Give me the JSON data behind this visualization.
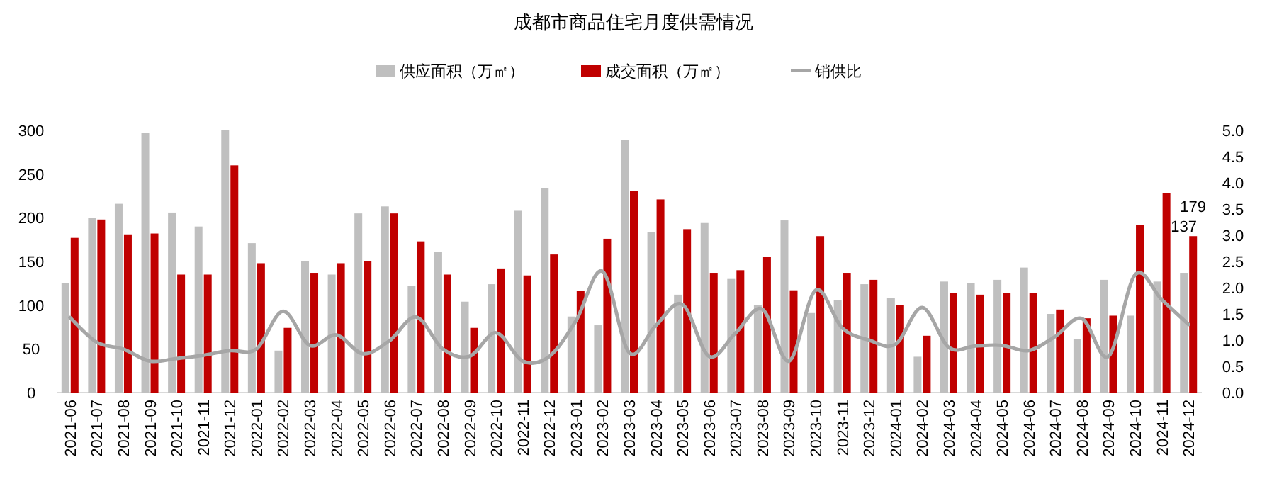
{
  "chart_data": {
    "type": "bar",
    "title": "成都市商品住宅月度供需情况",
    "legend": "top",
    "grid": false,
    "categories": [
      "2021-06",
      "2021-07",
      "2021-08",
      "2021-09",
      "2021-10",
      "2021-11",
      "2021-12",
      "2022-01",
      "2022-02",
      "2022-03",
      "2022-04",
      "2022-05",
      "2022-06",
      "2022-07",
      "2022-08",
      "2022-09",
      "2022-10",
      "2022-11",
      "2022-12",
      "2023-01",
      "2023-02",
      "2023-03",
      "2023-04",
      "2023-05",
      "2023-06",
      "2023-07",
      "2023-08",
      "2023-09",
      "2023-10",
      "2023-11",
      "2023-12",
      "2024-01",
      "2024-02",
      "2024-03",
      "2024-04",
      "2024-05",
      "2024-06",
      "2024-07",
      "2024-08",
      "2024-09",
      "2024-10",
      "2024-11",
      "2024-12"
    ],
    "series": [
      {
        "name": "供应面积（万㎡）",
        "type": "bar",
        "color": "#bfbfbf",
        "values": [
          125,
          200,
          216,
          297,
          206,
          190,
          300,
          171,
          48,
          150,
          135,
          205,
          213,
          122,
          161,
          104,
          124,
          208,
          234,
          87,
          77,
          289,
          184,
          112,
          194,
          130,
          100,
          197,
          91,
          106,
          124,
          108,
          41,
          127,
          125,
          129,
          143,
          90,
          61,
          129,
          88,
          127,
          137
        ],
        "value_labels": [
          null,
          null,
          null,
          null,
          null,
          null,
          null,
          null,
          null,
          null,
          null,
          null,
          null,
          null,
          null,
          null,
          null,
          null,
          null,
          null,
          null,
          null,
          null,
          null,
          null,
          null,
          null,
          null,
          null,
          null,
          null,
          null,
          null,
          null,
          null,
          null,
          null,
          null,
          null,
          null,
          null,
          null,
          "137"
        ]
      },
      {
        "name": "成交面积（万㎡）",
        "type": "bar",
        "color": "#c00000",
        "values": [
          177,
          198,
          181,
          182,
          135,
          135,
          260,
          148,
          74,
          137,
          148,
          150,
          205,
          173,
          135,
          74,
          142,
          134,
          158,
          116,
          176,
          231,
          221,
          187,
          137,
          140,
          155,
          117,
          179,
          137,
          129,
          100,
          65,
          114,
          112,
          114,
          114,
          95,
          85,
          88,
          192,
          228,
          179
        ],
        "value_labels": [
          null,
          null,
          null,
          null,
          null,
          null,
          null,
          null,
          null,
          null,
          null,
          null,
          null,
          null,
          null,
          null,
          null,
          null,
          null,
          null,
          null,
          null,
          null,
          null,
          null,
          null,
          null,
          null,
          null,
          null,
          null,
          null,
          null,
          null,
          null,
          null,
          null,
          null,
          null,
          null,
          null,
          null,
          "179"
        ]
      },
      {
        "name": "销供比",
        "type": "line",
        "axis": "y2",
        "color": "#a6a6a6",
        "values": [
          1.43,
          0.96,
          0.83,
          0.6,
          0.65,
          0.71,
          0.8,
          0.83,
          1.55,
          0.9,
          1.1,
          0.74,
          0.99,
          1.44,
          0.83,
          0.69,
          1.14,
          0.6,
          0.69,
          1.37,
          2.31,
          0.76,
          1.28,
          1.68,
          0.69,
          1.14,
          1.59,
          0.6,
          1.95,
          1.23,
          1.0,
          0.92,
          1.62,
          0.86,
          0.89,
          0.9,
          0.8,
          1.07,
          1.41,
          0.69,
          2.25,
          1.77,
          1.3
        ]
      }
    ],
    "ylim": [
      0,
      300
    ],
    "yticks": [
      0,
      50,
      100,
      150,
      200,
      250,
      300
    ],
    "y2lim": [
      0,
      5
    ],
    "y2ticks": [
      {
        "value": 0,
        "label": "0.0"
      },
      {
        "value": 0.5,
        "label": "0.5"
      },
      {
        "value": 1,
        "label": "1.0"
      },
      {
        "value": 1.5,
        "label": "1.5"
      },
      {
        "value": 2,
        "label": "2.0"
      },
      {
        "value": 2.5,
        "label": "2.5"
      },
      {
        "value": 3,
        "label": "3.0"
      },
      {
        "value": 3.5,
        "label": "3.5"
      },
      {
        "value": 4,
        "label": "4.0"
      },
      {
        "value": 4.5,
        "label": "4.5"
      },
      {
        "value": 5,
        "label": "5.0"
      }
    ]
  }
}
